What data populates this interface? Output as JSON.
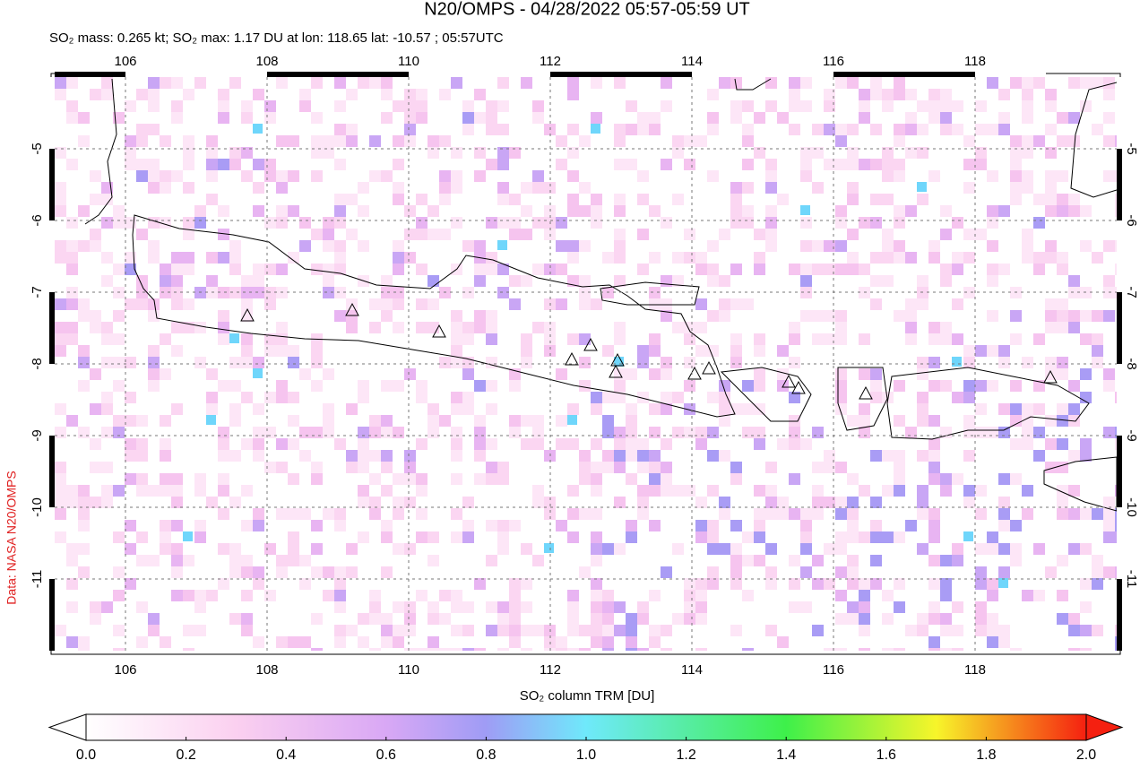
{
  "title": "N20/OMPS - 04/28/2022 05:57-05:59 UT",
  "subtitle": "SO₂ mass: 0.265 kt; SO₂ max: 1.17 DU at lon: 118.65 lat: -10.57 ; 05:57UTC",
  "map": {
    "lonlim": [
      105,
      120
    ],
    "latlim": [
      -4,
      -12
    ],
    "lon_ticks": [
      106,
      108,
      110,
      112,
      114,
      116,
      118
    ],
    "lat_ticks": [
      -5,
      -6,
      -7,
      -8,
      -9,
      -10,
      -11
    ]
  },
  "colorbar": {
    "label": "SO₂ column TRM [DU]",
    "lim": [
      0,
      2
    ],
    "ticks": [
      {
        "value": 0,
        "label": "0.0"
      },
      {
        "value": 0.2,
        "label": "0.2"
      },
      {
        "value": 0.4,
        "label": "0.4"
      },
      {
        "value": 0.6,
        "label": "0.6"
      },
      {
        "value": 0.8,
        "label": "0.8"
      },
      {
        "value": 1,
        "label": "1.0"
      },
      {
        "value": 1.2,
        "label": "1.2"
      },
      {
        "value": 1.4,
        "label": "1.4"
      },
      {
        "value": 1.6,
        "label": "1.6"
      },
      {
        "value": 1.8,
        "label": "1.8"
      },
      {
        "value": 2,
        "label": "2.0"
      }
    ]
  },
  "credit": "Data: NASA N20/OMPS"
}
